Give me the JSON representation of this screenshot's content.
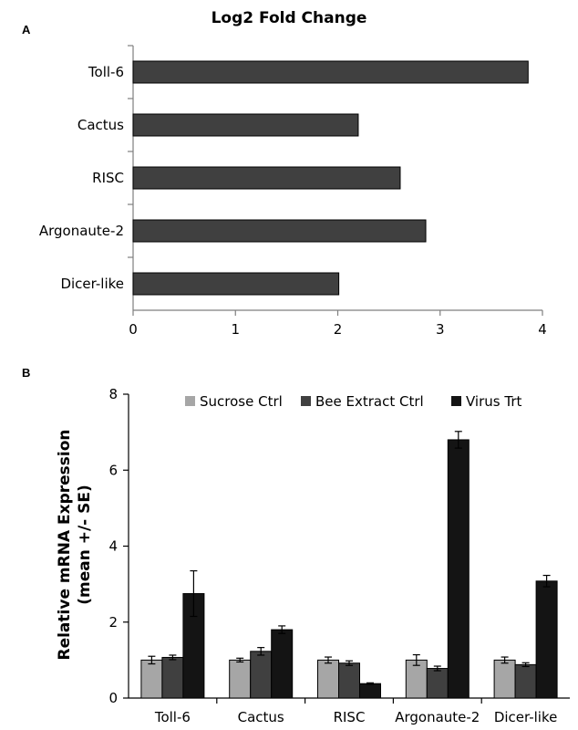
{
  "panel_a": {
    "letter": "A"
  },
  "panel_b": {
    "letter": "B"
  },
  "chart_data": [
    {
      "type": "bar",
      "orientation": "horizontal",
      "title": "Log2 Fold Change",
      "categories": [
        "Toll-6",
        "Cactus",
        "RISC",
        "Argonaute-2",
        "Dicer-like"
      ],
      "values": [
        3.86,
        2.2,
        2.61,
        2.86,
        2.01
      ],
      "xlim": [
        0,
        4
      ],
      "xticks": [
        "0",
        "1",
        "2",
        "3",
        "4"
      ],
      "bar_color": "#404040",
      "grid": false
    },
    {
      "type": "bar",
      "title": "",
      "ylabel_line1": "Relative mRNA Expression",
      "ylabel_line2": "(mean +/- SE)",
      "categories": [
        "Toll-6",
        "Cactus",
        "RISC",
        "Argonaute-2",
        "Dicer-like"
      ],
      "ylim": [
        0,
        8
      ],
      "yticks": [
        "0",
        "2",
        "4",
        "6",
        "8"
      ],
      "legend_position": "top",
      "grid": false,
      "series": [
        {
          "name": "Sucrose Ctrl",
          "color": "#a6a6a6",
          "values": [
            1.0,
            1.0,
            1.0,
            1.0,
            1.0
          ],
          "errors": [
            0.1,
            0.05,
            0.08,
            0.14,
            0.08
          ]
        },
        {
          "name": "Bee Extract Ctrl",
          "color": "#404040",
          "values": [
            1.07,
            1.23,
            0.92,
            0.78,
            0.88
          ],
          "errors": [
            0.06,
            0.1,
            0.06,
            0.06,
            0.05
          ]
        },
        {
          "name": "Virus Trt",
          "color": "#141414",
          "values": [
            2.75,
            1.8,
            0.38,
            6.8,
            3.08
          ],
          "errors": [
            0.6,
            0.1,
            0.02,
            0.22,
            0.15
          ]
        }
      ]
    }
  ]
}
